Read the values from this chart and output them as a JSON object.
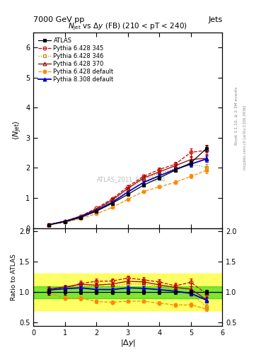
{
  "header_left": "7000 GeV pp",
  "header_right": "Jets",
  "plot_title": "$N_{\\rm jet}$ vs $\\Delta y$ (FB) (210 < pT < 240)",
  "xlabel": "$|\\Delta y|$",
  "ylabel_main": "$\\langle N_{\\rm jet}\\rangle$",
  "ylabel_ratio": "Ratio to ATLAS",
  "rivet_label": "Rivet 3.1.10, ≥ 2.3M events",
  "arxiv_label": "mcplots.cern.ch [arXiv:1306.3436]",
  "watermark": "ATLAS_2011_S9126244",
  "x": [
    0.5,
    1.0,
    1.5,
    2.0,
    2.5,
    3.0,
    3.5,
    4.0,
    4.5,
    5.0,
    5.5
  ],
  "atlas_y": [
    0.11,
    0.21,
    0.35,
    0.56,
    0.82,
    1.12,
    1.43,
    1.67,
    1.92,
    2.17,
    2.65
  ],
  "atlas_yerr": [
    0.005,
    0.008,
    0.012,
    0.018,
    0.025,
    0.03,
    0.04,
    0.05,
    0.06,
    0.07,
    0.09
  ],
  "p345_y": [
    0.115,
    0.225,
    0.4,
    0.66,
    0.97,
    1.38,
    1.72,
    1.95,
    2.12,
    2.52,
    2.58
  ],
  "p345_yerr": [
    0.004,
    0.008,
    0.015,
    0.022,
    0.03,
    0.04,
    0.055,
    0.065,
    0.09,
    0.13,
    0.18
  ],
  "p346_y": [
    0.115,
    0.225,
    0.385,
    0.615,
    0.9,
    1.27,
    1.62,
    1.83,
    1.97,
    2.12,
    2.02
  ],
  "p346_yerr": [
    0.004,
    0.008,
    0.013,
    0.02,
    0.028,
    0.038,
    0.05,
    0.06,
    0.07,
    0.09,
    0.11
  ],
  "p370_y": [
    0.116,
    0.228,
    0.395,
    0.625,
    0.93,
    1.32,
    1.67,
    1.87,
    2.07,
    2.28,
    2.32
  ],
  "p370_yerr": [
    0.004,
    0.008,
    0.013,
    0.02,
    0.028,
    0.038,
    0.05,
    0.06,
    0.07,
    0.09,
    0.13
  ],
  "pdef_y": [
    0.108,
    0.19,
    0.315,
    0.475,
    0.685,
    0.955,
    1.22,
    1.37,
    1.52,
    1.72,
    1.92
  ],
  "pdef_yerr": [
    0.004,
    0.007,
    0.011,
    0.016,
    0.022,
    0.03,
    0.04,
    0.05,
    0.06,
    0.07,
    0.09
  ],
  "p8_y": [
    0.114,
    0.222,
    0.375,
    0.585,
    0.855,
    1.2,
    1.52,
    1.74,
    1.95,
    2.13,
    2.3
  ],
  "p8_yerr": [
    0.004,
    0.008,
    0.013,
    0.02,
    0.028,
    0.038,
    0.05,
    0.06,
    0.07,
    0.085,
    0.11
  ],
  "color_345": "#cc0000",
  "color_346": "#bb8800",
  "color_370": "#990000",
  "color_def": "#ff8800",
  "color_p8": "#0000cc",
  "color_atlas": "#000000",
  "ylim_main": [
    0.0,
    6.5
  ],
  "ylim_ratio": [
    0.45,
    2.05
  ],
  "yticks_main": [
    0,
    1,
    2,
    3,
    4,
    5,
    6
  ],
  "yticks_ratio": [
    0.5,
    1.0,
    1.5,
    2.0
  ],
  "green_band": [
    0.9,
    1.1
  ],
  "yellow_band": [
    0.7,
    1.3
  ]
}
